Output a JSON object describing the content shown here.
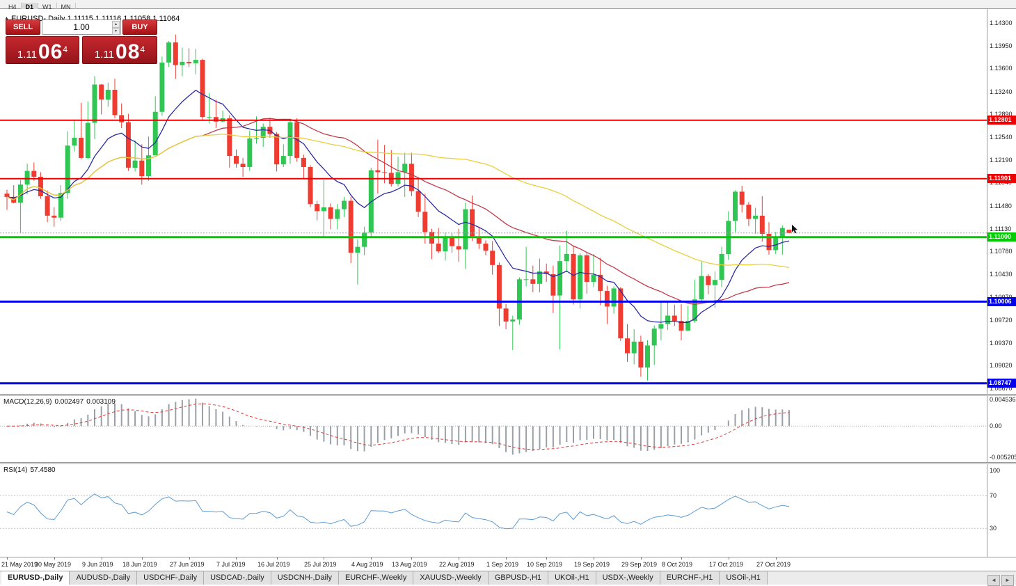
{
  "icons": {
    "title_marker": "▲",
    "spinner_up": "▴",
    "spinner_down": "▾",
    "tab_left": "◄",
    "tab_right": "►"
  },
  "colors": {
    "bull": "#2fc653",
    "bear": "#ef3b30",
    "bid_line": "#a0a0a0",
    "macd_hist": "#9aa0a6",
    "macd_signal": "#e03a3a",
    "rsi": "#5b9bd5"
  },
  "toolbar": {
    "timeframes": [
      "H4",
      "D1",
      "W1",
      "MN"
    ],
    "active": "D1"
  },
  "chart_header": {
    "title": "EURUSD-,Daily 1.11115 1.11116 1.11058 1.11064"
  },
  "trade_panel": {
    "sell_label": "SELL",
    "buy_label": "BUY",
    "lot": "1.00",
    "sell_price": {
      "prefix": "1.11",
      "big": "06",
      "sup": "4"
    },
    "buy_price": {
      "prefix": "1.11",
      "big": "08",
      "sup": "4"
    }
  },
  "chart_data": {
    "type": "candlestick",
    "symbol": "EURUSD-",
    "timeframe": "Daily",
    "current_bar": {
      "open": "1.11115",
      "high": "1.11116",
      "low": "1.11058",
      "close": "1.11064"
    },
    "ylim": [
      1.08584,
      1.14514
    ],
    "y_ticks": [
      "1.14300",
      "1.13950",
      "1.13600",
      "1.13240",
      "1.12890",
      "1.12540",
      "1.12190",
      "1.11840",
      "1.11480",
      "1.11130",
      "1.10780",
      "1.10430",
      "1.10070",
      "1.09720",
      "1.09370",
      "1.09020",
      "1.08670"
    ],
    "levels": [
      {
        "price": 1.12801,
        "label": "1.12801",
        "color": "#ee0000",
        "width": 2
      },
      {
        "price": 1.11901,
        "label": "1.11901",
        "color": "#ee0000",
        "width": 2
      },
      {
        "price": 1.11,
        "label": "1.11000",
        "color": "#00cc00",
        "width": 3
      },
      {
        "price": 1.10006,
        "label": "1.10006",
        "color": "#0000ee",
        "width": 3
      },
      {
        "price": 1.08747,
        "label": "1.08747",
        "color": "#0000ee",
        "width": 3
      }
    ],
    "bid": {
      "price": 1.11064,
      "label": "1.11064"
    },
    "moving_averages": [
      {
        "method": "ema",
        "period": 12,
        "color": "#2b2ba0"
      },
      {
        "method": "sma",
        "period": 30,
        "color": "#c03a4a"
      },
      {
        "method": "sma",
        "period": 60,
        "color": "#e9cf3e"
      }
    ],
    "macd": {
      "label_name": "MACD(12,26,9)",
      "value_main": "0.002497",
      "value_signal": "0.003109",
      "fast": 12,
      "slow": 26,
      "signal": 9,
      "ylim": [
        -0.006,
        0.005
      ],
      "axis_labels": [
        "0.004536",
        "0.00",
        "-0.005205"
      ]
    },
    "rsi": {
      "label_name": "RSI(14)",
      "value": "57.4580",
      "period": 14,
      "levels": [
        70,
        30
      ],
      "axis_labels": [
        "100",
        "70",
        "30"
      ]
    },
    "date_labels": [
      {
        "text": "21 May 2019",
        "index": 0
      },
      {
        "text": "30 May 2019",
        "index": 7
      },
      {
        "text": "9 Jun 2019",
        "index": 14
      },
      {
        "text": "18 Jun 2019",
        "index": 20
      },
      {
        "text": "27 Jun 2019",
        "index": 27
      },
      {
        "text": "7 Jul 2019",
        "index": 34
      },
      {
        "text": "16 Jul 2019",
        "index": 40
      },
      {
        "text": "25 Jul 2019",
        "index": 47
      },
      {
        "text": "4 Aug 2019",
        "index": 54
      },
      {
        "text": "13 Aug 2019",
        "index": 60
      },
      {
        "text": "22 Aug 2019",
        "index": 67
      },
      {
        "text": "1 Sep 2019",
        "index": 74
      },
      {
        "text": "10 Sep 2019",
        "index": 80
      },
      {
        "text": "19 Sep 2019",
        "index": 87
      },
      {
        "text": "29 Sep 2019",
        "index": 94
      },
      {
        "text": "8 Oct 2019",
        "index": 100
      },
      {
        "text": "17 Oct 2019",
        "index": 107
      },
      {
        "text": "27 Oct 2019",
        "index": 114
      }
    ],
    "candles": [
      [
        1.1167,
        1.1173,
        1.1142,
        1.1162
      ],
      [
        1.1162,
        1.118,
        1.1152,
        1.1153
      ],
      [
        1.1153,
        1.1188,
        1.1107,
        1.1181
      ],
      [
        1.1181,
        1.1213,
        1.1166,
        1.1202
      ],
      [
        1.1202,
        1.1215,
        1.1187,
        1.1193
      ],
      [
        1.1193,
        1.12,
        1.1159,
        1.1163
      ],
      [
        1.1163,
        1.1172,
        1.1123,
        1.1133
      ],
      [
        1.1133,
        1.1146,
        1.1116,
        1.113
      ],
      [
        1.113,
        1.118,
        1.1125,
        1.1168
      ],
      [
        1.1168,
        1.1263,
        1.1159,
        1.1241
      ],
      [
        1.1241,
        1.128,
        1.1232,
        1.1253
      ],
      [
        1.1253,
        1.1307,
        1.122,
        1.1222
      ],
      [
        1.1222,
        1.1309,
        1.122,
        1.1276
      ],
      [
        1.1276,
        1.1348,
        1.1251,
        1.1335
      ],
      [
        1.1335,
        1.1336,
        1.1289,
        1.1312
      ],
      [
        1.1312,
        1.1338,
        1.1301,
        1.1327
      ],
      [
        1.1327,
        1.1344,
        1.1283,
        1.1288
      ],
      [
        1.1288,
        1.1306,
        1.1268,
        1.1277
      ],
      [
        1.1277,
        1.129,
        1.1202,
        1.1207
      ],
      [
        1.1207,
        1.1249,
        1.1201,
        1.1218
      ],
      [
        1.1218,
        1.1243,
        1.1181,
        1.1194
      ],
      [
        1.1194,
        1.1255,
        1.1187,
        1.1226
      ],
      [
        1.1226,
        1.1317,
        1.1226,
        1.1293
      ],
      [
        1.1293,
        1.1378,
        1.1287,
        1.1369
      ],
      [
        1.1369,
        1.1402,
        1.1362,
        1.14
      ],
      [
        1.14,
        1.1412,
        1.1344,
        1.1365
      ],
      [
        1.1365,
        1.1392,
        1.1348,
        1.137
      ],
      [
        1.137,
        1.1391,
        1.1362,
        1.1368
      ],
      [
        1.1368,
        1.139,
        1.1351,
        1.1373
      ],
      [
        1.1373,
        1.1375,
        1.1281,
        1.1285
      ],
      [
        1.1285,
        1.1322,
        1.1275,
        1.1285
      ],
      [
        1.1285,
        1.1312,
        1.1268,
        1.1278
      ],
      [
        1.1278,
        1.1295,
        1.1277,
        1.1283
      ],
      [
        1.1283,
        1.1288,
        1.1207,
        1.1225
      ],
      [
        1.1225,
        1.1235,
        1.1207,
        1.1213
      ],
      [
        1.1213,
        1.1222,
        1.1193,
        1.1208
      ],
      [
        1.1208,
        1.1264,
        1.1202,
        1.1252
      ],
      [
        1.1252,
        1.1286,
        1.1244,
        1.1253
      ],
      [
        1.1253,
        1.1275,
        1.1239,
        1.127
      ],
      [
        1.127,
        1.1284,
        1.1253,
        1.1259
      ],
      [
        1.1259,
        1.1262,
        1.1201,
        1.1212
      ],
      [
        1.1212,
        1.1243,
        1.1208,
        1.1225
      ],
      [
        1.1225,
        1.1282,
        1.1213,
        1.1277
      ],
      [
        1.1277,
        1.1283,
        1.1216,
        1.1222
      ],
      [
        1.1222,
        1.1227,
        1.119,
        1.1208
      ],
      [
        1.1208,
        1.1211,
        1.1146,
        1.1151
      ],
      [
        1.1151,
        1.1156,
        1.1126,
        1.114
      ],
      [
        1.114,
        1.1188,
        1.1101,
        1.1146
      ],
      [
        1.1146,
        1.1152,
        1.1112,
        1.1128
      ],
      [
        1.1128,
        1.1151,
        1.1112,
        1.1143
      ],
      [
        1.1143,
        1.1162,
        1.1131,
        1.1156
      ],
      [
        1.1156,
        1.1162,
        1.106,
        1.1076
      ],
      [
        1.1076,
        1.1096,
        1.1027,
        1.1085
      ],
      [
        1.1085,
        1.1116,
        1.1072,
        1.1107
      ],
      [
        1.1107,
        1.1207,
        1.1101,
        1.1203
      ],
      [
        1.1203,
        1.125,
        1.1167,
        1.12
      ],
      [
        1.12,
        1.1242,
        1.1183,
        1.1199
      ],
      [
        1.1199,
        1.1234,
        1.1178,
        1.1182
      ],
      [
        1.1182,
        1.1224,
        1.1178,
        1.12
      ],
      [
        1.12,
        1.123,
        1.1162,
        1.1213
      ],
      [
        1.1213,
        1.123,
        1.1163,
        1.1171
      ],
      [
        1.1171,
        1.1192,
        1.1131,
        1.1139
      ],
      [
        1.1139,
        1.1167,
        1.109,
        1.1108
      ],
      [
        1.1108,
        1.1113,
        1.1066,
        1.109
      ],
      [
        1.109,
        1.1114,
        1.1075,
        1.1078
      ],
      [
        1.1078,
        1.1107,
        1.1064,
        1.1099
      ],
      [
        1.1099,
        1.1106,
        1.1076,
        1.1086
      ],
      [
        1.1086,
        1.1113,
        1.1062,
        1.1081
      ],
      [
        1.1081,
        1.1153,
        1.1051,
        1.1143
      ],
      [
        1.1143,
        1.1164,
        1.1094,
        1.1101
      ],
      [
        1.1101,
        1.1116,
        1.1082,
        1.109
      ],
      [
        1.109,
        1.1095,
        1.1072,
        1.1079
      ],
      [
        1.1079,
        1.1094,
        1.1042,
        1.1057
      ],
      [
        1.1057,
        1.1061,
        1.0963,
        1.099
      ],
      [
        1.099,
        1.0997,
        1.0958,
        1.097
      ],
      [
        1.097,
        1.0979,
        1.0926,
        1.0973
      ],
      [
        1.0973,
        1.1038,
        1.0965,
        1.1035
      ],
      [
        1.1035,
        1.1085,
        1.1024,
        1.1035
      ],
      [
        1.1035,
        1.1056,
        1.1015,
        1.1028
      ],
      [
        1.1028,
        1.1067,
        1.1015,
        1.1047
      ],
      [
        1.1047,
        1.1059,
        1.1031,
        1.1043
      ],
      [
        1.1043,
        1.1056,
        1.0983,
        1.101
      ],
      [
        1.101,
        1.1087,
        1.0927,
        1.1063
      ],
      [
        1.1063,
        1.111,
        1.1046,
        1.1074
      ],
      [
        1.1074,
        1.1087,
        1.0996,
        1.1004
      ],
      [
        1.1004,
        1.1075,
        1.099,
        1.1072
      ],
      [
        1.1072,
        1.1076,
        1.1013,
        1.1031
      ],
      [
        1.1031,
        1.1074,
        1.1023,
        1.1042
      ],
      [
        1.1042,
        1.1068,
        1.0995,
        1.1017
      ],
      [
        1.1017,
        1.1025,
        1.0966,
        1.0993
      ],
      [
        1.0993,
        1.1024,
        1.0982,
        1.1021
      ],
      [
        1.1021,
        1.1023,
        1.094,
        1.0944
      ],
      [
        1.0944,
        1.0966,
        1.0908,
        1.0921
      ],
      [
        1.0921,
        1.0958,
        1.0904,
        1.0939
      ],
      [
        1.0939,
        1.0948,
        1.0885,
        1.0899
      ],
      [
        1.0899,
        1.0941,
        1.0879,
        1.0933
      ],
      [
        1.0933,
        1.0964,
        1.0903,
        1.0959
      ],
      [
        1.0959,
        1.0999,
        1.0941,
        1.0966
      ],
      [
        1.0966,
        1.0999,
        1.0957,
        1.0979
      ],
      [
        1.0979,
        1.0996,
        1.0963,
        1.0971
      ],
      [
        1.0971,
        1.0997,
        1.0941,
        1.0956
      ],
      [
        1.0956,
        1.0994,
        1.0955,
        1.0971
      ],
      [
        1.0971,
        1.1034,
        1.0968,
        1.1004
      ],
      [
        1.1004,
        1.1062,
        1.1002,
        1.104
      ],
      [
        1.104,
        1.1043,
        1.1012,
        1.1026
      ],
      [
        1.1026,
        1.1047,
        1.0991,
        1.1034
      ],
      [
        1.1034,
        1.1085,
        1.1023,
        1.1074
      ],
      [
        1.1074,
        1.114,
        1.1065,
        1.1125
      ],
      [
        1.1125,
        1.1172,
        1.1108,
        1.117
      ],
      [
        1.117,
        1.1179,
        1.1138,
        1.115
      ],
      [
        1.115,
        1.1154,
        1.1117,
        1.1128
      ],
      [
        1.1128,
        1.1145,
        1.1105,
        1.1133
      ],
      [
        1.1133,
        1.1163,
        1.1093,
        1.1105
      ],
      [
        1.1105,
        1.1123,
        1.1073,
        1.108
      ],
      [
        1.108,
        1.1108,
        1.1074,
        1.11
      ],
      [
        1.11,
        1.1118,
        1.1073,
        1.1114
      ],
      [
        1.11115,
        1.11116,
        1.11058,
        1.11064
      ]
    ]
  },
  "tabs": {
    "items": [
      "EURUSD-,Daily",
      "AUDUSD-,Daily",
      "USDCHF-,Daily",
      "USDCAD-,Daily",
      "USDCNH-,Daily",
      "EURCHF-,Weekly",
      "XAUUSD-,Weekly",
      "GBPUSD-,H1",
      "UKOil-,H1",
      "USDX-,Weekly",
      "EURCHF-,H1",
      "USOil-,H1"
    ],
    "active_index": 0
  }
}
